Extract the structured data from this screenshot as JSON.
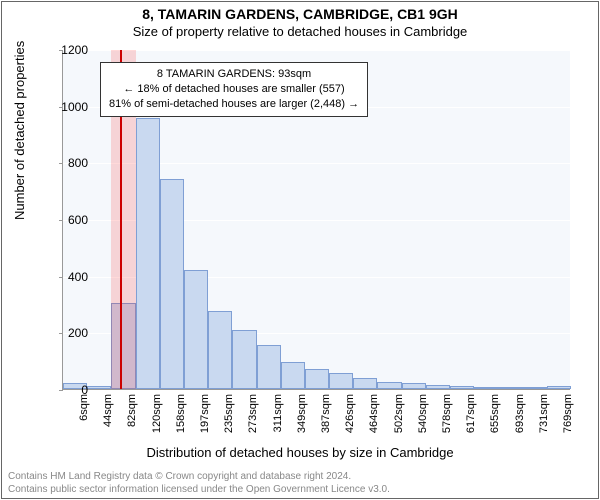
{
  "title": "8, TAMARIN GARDENS, CAMBRIDGE, CB1 9GH",
  "subtitle": "Size of property relative to detached houses in Cambridge",
  "chart": {
    "type": "histogram",
    "ylabel": "Number of detached properties",
    "xlabel": "Distribution of detached houses by size in Cambridge",
    "ylim": [
      0,
      1200
    ],
    "yticks": [
      0,
      200,
      400,
      600,
      800,
      1000,
      1200
    ],
    "xticks": [
      "6sqm",
      "44sqm",
      "82sqm",
      "120sqm",
      "158sqm",
      "197sqm",
      "235sqm",
      "273sqm",
      "311sqm",
      "349sqm",
      "387sqm",
      "426sqm",
      "464sqm",
      "502sqm",
      "540sqm",
      "578sqm",
      "617sqm",
      "655sqm",
      "693sqm",
      "731sqm",
      "769sqm"
    ],
    "bars": [
      20,
      10,
      305,
      955,
      740,
      420,
      275,
      210,
      155,
      95,
      70,
      55,
      40,
      25,
      20,
      15,
      10,
      5,
      5,
      5,
      10
    ],
    "bar_fill": "#c9d9f0",
    "bar_stroke": "#7f9fd4",
    "plot_bg": "#f5f8fc",
    "grid_color": "#ffffff",
    "highlight_index": 2,
    "highlight_fill": "rgba(255,0,0,0.15)",
    "highlight_line": "#cc0000",
    "annotation": {
      "line1": "8 TAMARIN GARDENS: 93sqm",
      "line2": "← 18% of detached houses are smaller (557)",
      "line3": "81% of semi-detached houses are larger (2,448) →"
    }
  },
  "footer": {
    "line1": "Contains HM Land Registry data © Crown copyright and database right 2024.",
    "line2": "Contains public sector information licensed under the Open Government Licence v3.0."
  },
  "style": {
    "title_fontsize": 14,
    "subtitle_fontsize": 13,
    "axis_label_fontsize": 13,
    "tick_fontsize": 12,
    "annot_fontsize": 11,
    "footer_fontsize": 10,
    "footer_color": "#888888"
  }
}
